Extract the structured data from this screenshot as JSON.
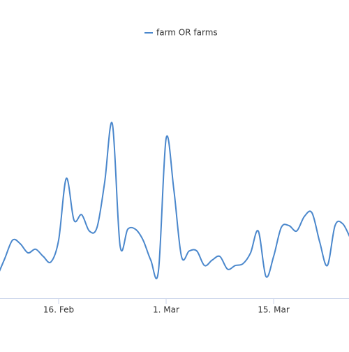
{
  "chart_data": {
    "type": "line",
    "categories": [
      null,
      null,
      null,
      null,
      null,
      null,
      null,
      null,
      "16. Feb",
      null,
      null,
      null,
      null,
      null,
      null,
      null,
      null,
      null,
      null,
      null,
      null,
      null,
      "1. Mar",
      null,
      null,
      null,
      null,
      null,
      null,
      null,
      null,
      null,
      null,
      null,
      null,
      null,
      "15. Mar",
      null,
      null,
      null,
      null,
      null,
      null,
      null,
      null,
      null,
      null
    ],
    "series": [
      {
        "name": "farm OR farms",
        "color": "#4a87cc",
        "values": [
          12,
          22,
          32,
          30,
          25,
          27,
          23,
          20,
          32,
          66,
          43,
          46,
          37,
          39,
          64,
          96,
          29,
          38,
          38,
          32,
          21,
          15,
          88,
          60,
          23,
          26,
          26,
          18,
          21,
          23,
          16,
          18,
          19,
          25,
          37,
          12,
          23,
          39,
          40,
          37,
          45,
          47,
          31,
          18,
          40,
          41,
          33
        ]
      }
    ],
    "ylim": [
      0,
      100
    ],
    "legend": "top"
  }
}
